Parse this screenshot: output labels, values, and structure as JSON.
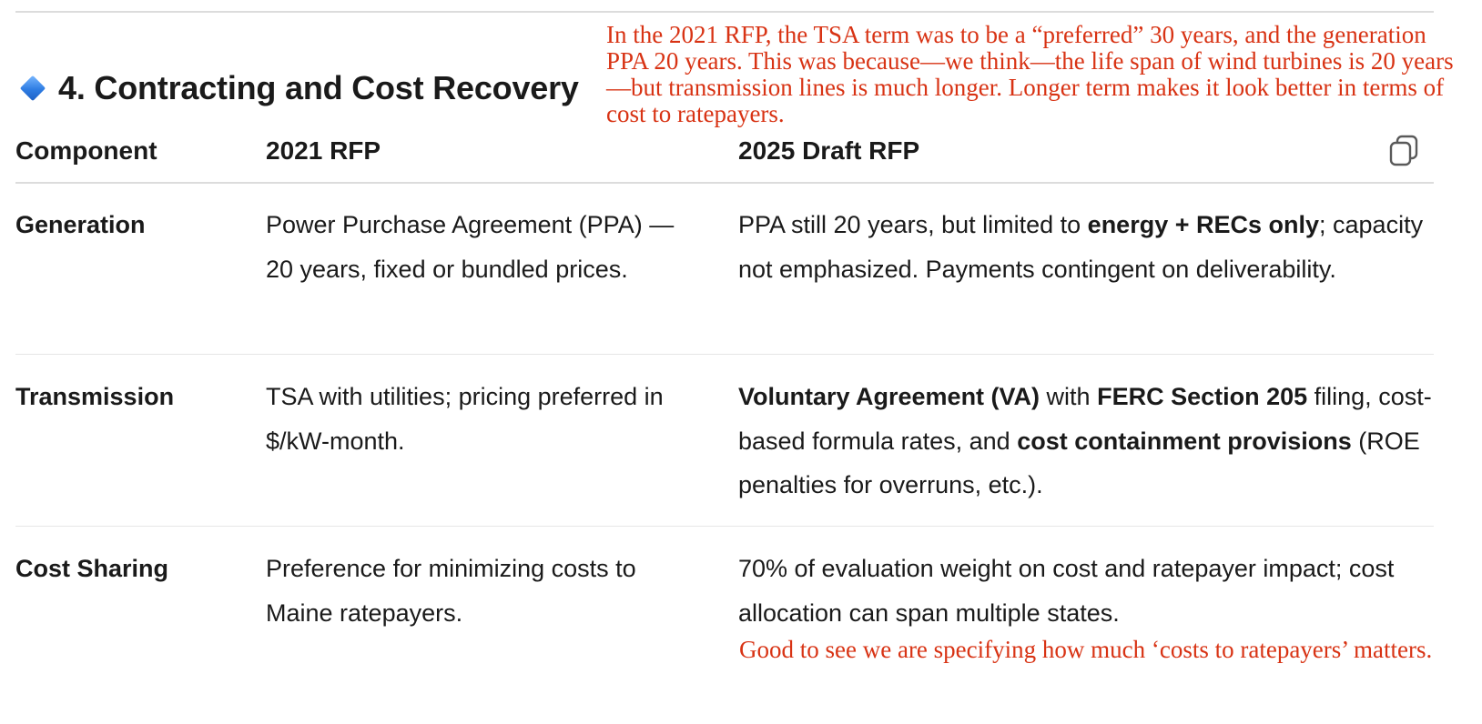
{
  "section": {
    "title": "4. Contracting and Cost Recovery",
    "icon": "blue-diamond-icon"
  },
  "annotations": {
    "top": "In the 2021 RFP, the TSA term was to be a “preferred” 30 years, and the generation PPA 20 years. This was because—we think—the life span of wind turbines is 20 years—but transmission lines is much longer. Longer term makes it look better in terms of cost to ratepayers.",
    "bottom": "Good to see we are specifying how much ‘costs to ratepayers’ matters.",
    "color": "#d83314"
  },
  "table": {
    "headers": [
      "Component",
      "2021 RFP",
      "2025 Draft RFP"
    ],
    "rows": [
      {
        "component": "Generation",
        "rfp2021": "Power Purchase Agreement (PPA) — 20 years, fixed or bundled prices.",
        "rfp2025": {
          "a": "PPA still 20 years, but limited to ",
          "b": "energy + RECs only",
          "c": "; capacity not emphasized. Payments contingent on deliverability."
        }
      },
      {
        "component": "Transmission",
        "rfp2021": "TSA with utilities; pricing preferred in $/kW-month.",
        "rfp2025": {
          "a": "Voluntary Agreement (VA)",
          "b": " with ",
          "c": "FERC Section 205",
          "d": " filing, cost-based formula rates, and ",
          "e": "cost containment provisions",
          "f": " (ROE penalties for overruns, etc.)."
        }
      },
      {
        "component": "Cost Sharing",
        "rfp2021": "Preference for minimizing costs to Maine ratepayers.",
        "rfp2025": "70% of evaluation weight on cost and ratepayer impact; cost allocation can span multiple states."
      }
    ]
  },
  "copy_button_icon": "copy-icon"
}
